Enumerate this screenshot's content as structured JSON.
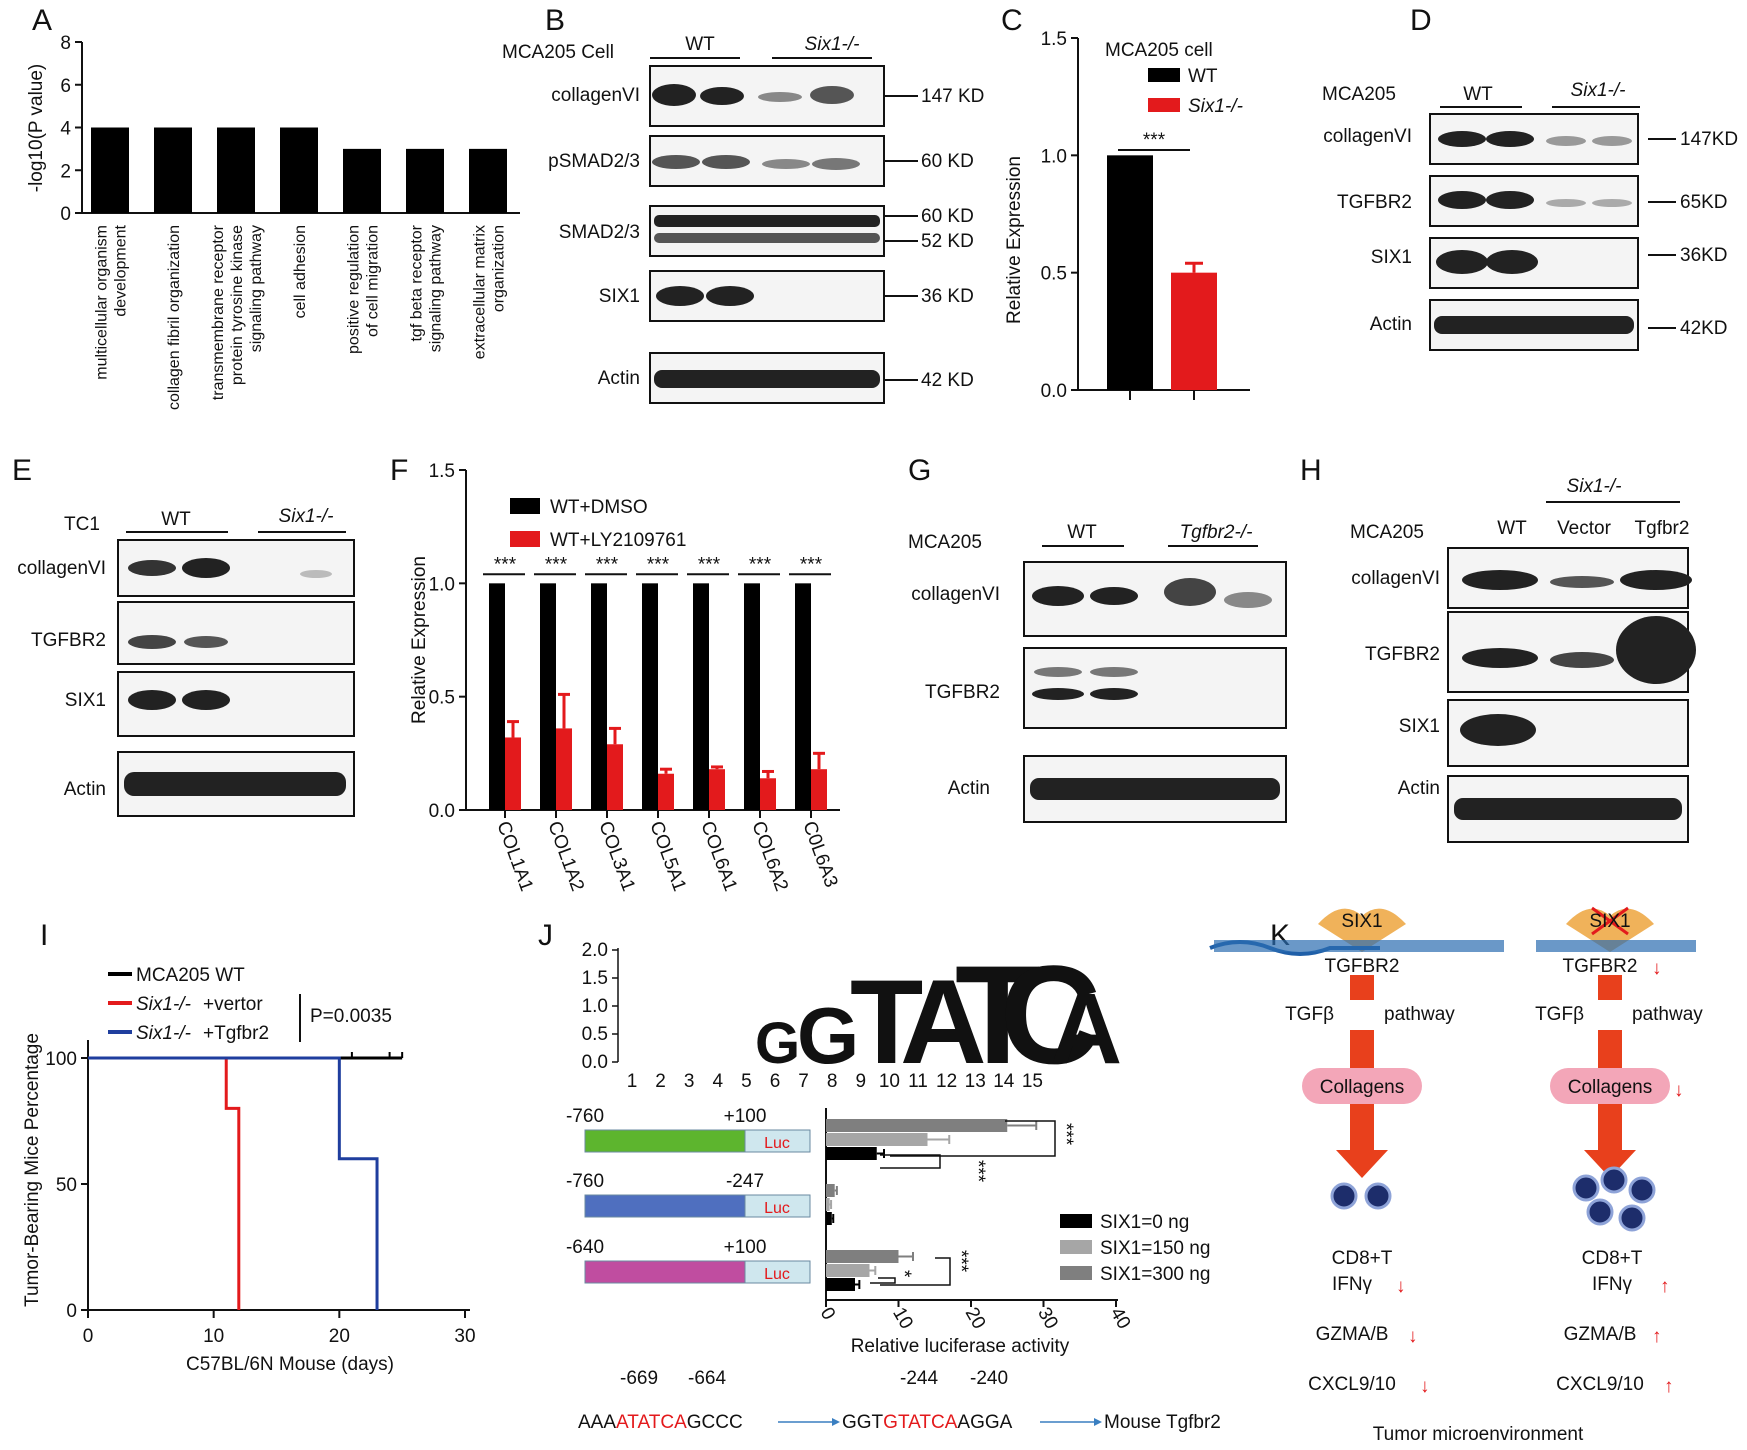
{
  "panel_letters": [
    "A",
    "B",
    "C",
    "D",
    "E",
    "F",
    "G",
    "H",
    "I",
    "J",
    "K"
  ],
  "chart_data": [
    {
      "panel": "A",
      "type": "bar",
      "ylabel": "-log10(P value)",
      "ylim": [
        0,
        8
      ],
      "yticks": [
        "0",
        "2",
        "4",
        "6",
        "8"
      ],
      "categories": [
        {
          "lines": [
            "multicellular organism",
            "development"
          ],
          "highlight": false
        },
        {
          "lines": [
            "collagen fibril organization"
          ],
          "highlight": false
        },
        {
          "lines": [
            "transmembrane receptor",
            "protein tyrosine kinase",
            "signaling pathway"
          ],
          "highlight": true
        },
        {
          "lines": [
            "cell adhesion"
          ],
          "highlight": false
        },
        {
          "lines": [
            "positive regulation",
            "of cell migration"
          ],
          "highlight": false
        },
        {
          "lines": [
            "tgf beta receptor",
            "signaling pathway"
          ],
          "highlight": true
        },
        {
          "lines": [
            "extracellular matrix",
            "organization"
          ],
          "highlight": false
        }
      ],
      "values": [
        4,
        4,
        4,
        4,
        3,
        3,
        3
      ],
      "colors": {
        "bar": "#000000",
        "highlight_text": "#e31a1c"
      }
    },
    {
      "panel": "C",
      "type": "bar",
      "title": "MCA205 cell",
      "ylabel": "Relative Expression",
      "ylim": [
        0,
        1.5
      ],
      "yticks": [
        "0.0",
        "0.5",
        "1.0",
        "1.5"
      ],
      "series": [
        {
          "name": "WT",
          "value": 1.0,
          "error": 0,
          "color": "#000000"
        },
        {
          "name": "Six1-/-",
          "value": 0.5,
          "error": 0.04,
          "color": "#e31a1c"
        }
      ],
      "significance": "***"
    },
    {
      "panel": "F",
      "type": "bar",
      "ylabel": "Relative Expression",
      "ylim": [
        0,
        1.5
      ],
      "yticks": [
        "0.0",
        "0.5",
        "1.0",
        "1.5"
      ],
      "categories": [
        "COL1A1",
        "COL1A2",
        "COL3A1",
        "COL5A1",
        "COL6A1",
        "COL6A2",
        "C0L6A3"
      ],
      "series": [
        {
          "name": "WT+DMSO",
          "values": [
            1,
            1,
            1,
            1,
            1,
            1,
            1
          ],
          "errors": [
            0,
            0,
            0,
            0,
            0,
            0,
            0
          ],
          "color": "#000000"
        },
        {
          "name": "WT+LY2109761",
          "values": [
            0.32,
            0.36,
            0.29,
            0.16,
            0.18,
            0.14,
            0.18
          ],
          "errors": [
            0.07,
            0.15,
            0.07,
            0.02,
            0.01,
            0.03,
            0.07
          ],
          "color": "#e31a1c"
        }
      ],
      "significance": [
        "***",
        "***",
        "***",
        "***",
        "***",
        "***",
        "***"
      ]
    },
    {
      "panel": "I",
      "type": "line",
      "xlabel": "C57BL/6N Mouse (days)",
      "ylabel": "Tumor-Bearing Mice Percentage",
      "xlim": [
        0,
        30
      ],
      "ylim": [
        0,
        100
      ],
      "xticks": [
        "0",
        "10",
        "20",
        "30"
      ],
      "yticks": [
        "0",
        "50",
        "100"
      ],
      "pvalue": "P=0.0035",
      "series": [
        {
          "name": "MCA205 WT",
          "color": "#000000",
          "points": [
            [
              0,
              100
            ],
            [
              25,
              100
            ]
          ]
        },
        {
          "name": "+vertor",
          "prefix": "Six1-/-",
          "color": "#e31a1c",
          "points": [
            [
              0,
              100
            ],
            [
              11,
              100
            ],
            [
              11,
              80
            ],
            [
              12,
              80
            ],
            [
              12,
              0
            ]
          ]
        },
        {
          "name": "+Tgfbr2",
          "prefix": "Six1-/-",
          "color": "#1f3e9e",
          "points": [
            [
              0,
              100
            ],
            [
              20,
              100
            ],
            [
              20,
              60
            ],
            [
              23,
              60
            ],
            [
              23,
              0
            ]
          ]
        }
      ]
    },
    {
      "panel": "J",
      "type": "bar",
      "xlabel": "Relative luciferase activity",
      "xlim": [
        0,
        40
      ],
      "xticks": [
        "0",
        "10",
        "20",
        "30",
        "40"
      ],
      "logo_yticks": [
        "0.0",
        "0.5",
        "1.0",
        "1.5",
        "2.0"
      ],
      "logo_positions": [
        "1",
        "2",
        "3",
        "4",
        "5",
        "6",
        "7",
        "8",
        "9",
        "10",
        "11",
        "12",
        "13",
        "14",
        "15"
      ],
      "constructs": [
        {
          "start": "-760",
          "end": "+100",
          "color": "#5db52e"
        },
        {
          "start": "-760",
          "end": "-247",
          "color": "#4f6fbf"
        },
        {
          "start": "-640",
          "end": "+100",
          "color": "#c04da0"
        }
      ],
      "luc_label": "Luc",
      "series": [
        {
          "name": "SIX1=0 ng",
          "color": "#000000",
          "values": [
            7,
            0.8,
            4
          ],
          "errors": [
            1,
            0.2,
            0.6
          ]
        },
        {
          "name": "SIX1=150 ng",
          "color": "#a6a6a6",
          "values": [
            14,
            0.5,
            6
          ],
          "errors": [
            3,
            0.2,
            0.8
          ]
        },
        {
          "name": "SIX1=300 ng",
          "color": "#7f7f7f",
          "values": [
            25,
            1.2,
            10
          ],
          "errors": [
            4,
            0.3,
            2
          ]
        }
      ],
      "significance": [
        "***",
        "***",
        "*",
        "***"
      ],
      "seq": {
        "pos1a": "-669",
        "pos1b": "-664",
        "pos2a": "-244",
        "pos2b": "-240",
        "s1a": "AAA",
        "s1b": "ATATCA",
        "s1c": "GCCC",
        "s2a": "GGT",
        "s2b": "GTATCA",
        "s2c": "AGGA",
        "target": "Mouse Tgfbr2"
      }
    }
  ],
  "blots": {
    "B": {
      "header": "MCA205 Cell",
      "groups": [
        "WT",
        "Six1-/-"
      ],
      "rows": [
        "collagenVI",
        "pSMAD2/3",
        "SMAD2/3",
        "SIX1",
        "Actin"
      ],
      "kd": [
        "147 KD",
        "60 KD",
        "60 KD",
        "52 KD",
        "36 KD",
        "42 KD"
      ]
    },
    "D": {
      "header": "MCA205",
      "groups": [
        "WT",
        "Six1-/-"
      ],
      "rows": [
        "collagenVI",
        "TGFBR2",
        "SIX1",
        "Actin"
      ],
      "kd": [
        "147KD",
        "65KD",
        "36KD",
        "42KD"
      ]
    },
    "E": {
      "header": "TC1",
      "groups": [
        "WT",
        "Six1-/-"
      ],
      "rows": [
        "collagenVI",
        "TGFBR2",
        "SIX1",
        "Actin"
      ]
    },
    "G": {
      "header": "MCA205",
      "groups": [
        "WT",
        "Tgfbr2-/-"
      ],
      "rows": [
        "collagenVI",
        "TGFBR2",
        "Actin"
      ]
    },
    "H": {
      "header": "MCA205",
      "top_group": "Six1-/-",
      "groups": [
        "WT",
        "Vector",
        "Tgfbr2"
      ],
      "rows": [
        "collagenVI",
        "TGFBR2",
        "SIX1",
        "Actin"
      ]
    }
  },
  "diagram_K": {
    "protein": "SIX1",
    "gene": "TGFBR2",
    "pathway": "TGFβ   pathway",
    "collagens": "Collagens",
    "cd8": "CD8+T",
    "ifn": "IFNγ",
    "gzm": "GZMA/B",
    "cxcl": "CXCL9/10",
    "footer": "Tumor microenvironment",
    "down": "↓",
    "up": "↑"
  }
}
